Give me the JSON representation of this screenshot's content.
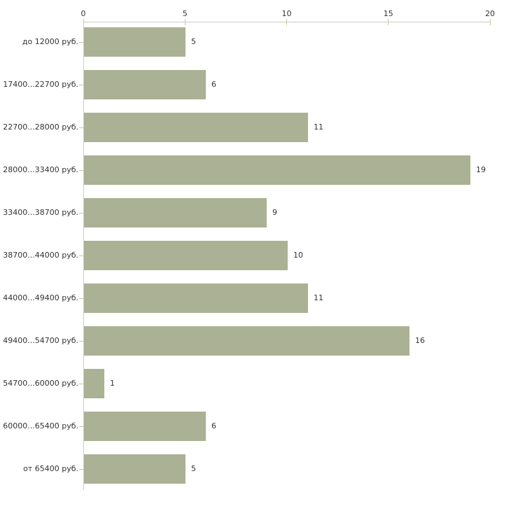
{
  "chart_data": {
    "type": "bar",
    "orientation": "horizontal",
    "title": "",
    "xlabel": "",
    "ylabel": "",
    "categories": [
      "до 12000 руб.",
      "17400...22700 руб.",
      "22700...28000 руб.",
      "28000...33400 руб.",
      "33400...38700 руб.",
      "38700...44000 руб.",
      "44000...49400 руб.",
      "49400...54700 руб.",
      "54700...60000 руб.",
      "60000...65400 руб.",
      "от 65400 руб."
    ],
    "values": [
      5,
      6,
      11,
      19,
      9,
      10,
      11,
      16,
      1,
      6,
      5
    ],
    "xlim": [
      0,
      20
    ],
    "x_ticks": [
      0,
      5,
      10,
      15,
      20
    ],
    "x_axis_position": "top",
    "grid": false,
    "legend": "none",
    "value_labels": "right-of-bar",
    "colors": {
      "bar": "#abb194",
      "tick": "#c9c9a3",
      "axis_line": "#cccccc",
      "text": "#333333",
      "background": "#ffffff"
    }
  }
}
